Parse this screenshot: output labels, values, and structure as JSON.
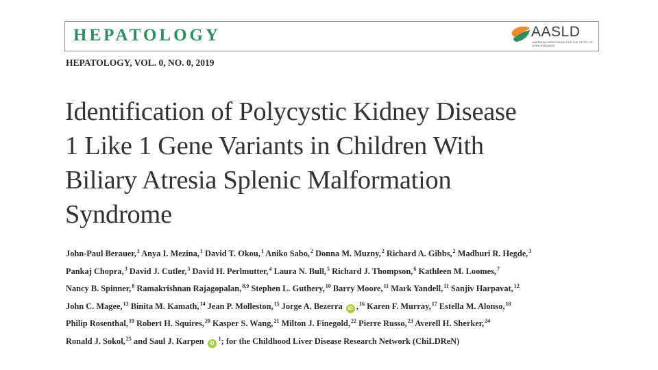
{
  "journal": {
    "name": "HEPATOLOGY",
    "issue": "HEPATOLOGY, VOL. 0, NO. 0, 2019",
    "logo_text": "AASLD",
    "logo_subtitle": "AMERICAN ASSOCIATION FOR THE STUDY OF LIVER DISEASES"
  },
  "title_lines": [
    "Identification of Polycystic Kidney Disease",
    "1 Like 1 Gene Variants in Children With",
    "Biliary Atresia Splenic Malformation",
    "Syndrome"
  ],
  "orcid_label": "iD",
  "authors_lines": [
    [
      {
        "name": "John-Paul Berauer,",
        "sup": "1"
      },
      {
        "name": "Anya I. Mezina,",
        "sup": "1"
      },
      {
        "name": "David T. Okou,",
        "sup": "1"
      },
      {
        "name": "Aniko Sabo,",
        "sup": "2"
      },
      {
        "name": "Donna M. Muzny,",
        "sup": "2"
      },
      {
        "name": "Richard A. Gibbs,",
        "sup": "2"
      },
      {
        "name": "Madhuri R. Hegde,",
        "sup": "3"
      }
    ],
    [
      {
        "name": "Pankaj Chopra,",
        "sup": "3"
      },
      {
        "name": "David J. Cutler,",
        "sup": "3"
      },
      {
        "name": "David H. Perlmutter,",
        "sup": "4"
      },
      {
        "name": "Laura N. Bull,",
        "sup": "5"
      },
      {
        "name": "Richard J. Thompson,",
        "sup": "6"
      },
      {
        "name": "Kathleen M. Loomes,",
        "sup": "7"
      }
    ],
    [
      {
        "name": "Nancy B. Spinner,",
        "sup": "8"
      },
      {
        "name": "Ramakrishnan Rajagopalan,",
        "sup": "8,9"
      },
      {
        "name": "Stephen L. Guthery,",
        "sup": "10"
      },
      {
        "name": "Barry Moore,",
        "sup": "11"
      },
      {
        "name": "Mark Yandell,",
        "sup": "11"
      },
      {
        "name": "Sanjiv Harpavat,",
        "sup": "12"
      }
    ],
    [
      {
        "name": "John C. Magee,",
        "sup": "13"
      },
      {
        "name": "Binita M. Kamath,",
        "sup": "14"
      },
      {
        "name": "Jean P. Molleston,",
        "sup": "15"
      },
      {
        "name": "Jorge A. Bezerra",
        "orcid": true,
        "after": ",",
        "sup": "16"
      },
      {
        "name": "Karen F. Murray,",
        "sup": "17"
      },
      {
        "name": "Estella M. Alonso,",
        "sup": "18"
      }
    ],
    [
      {
        "name": "Philip Rosenthal,",
        "sup": "19"
      },
      {
        "name": "Robert H. Squires,",
        "sup": "20"
      },
      {
        "name": "Kasper S. Wang,",
        "sup": "21"
      },
      {
        "name": "Milton J. Finegold,",
        "sup": "22"
      },
      {
        "name": "Pierre Russo,",
        "sup": "23"
      },
      {
        "name": "Averell H. Sherker,",
        "sup": "24"
      }
    ],
    [
      {
        "name": "Ronald J. Sokol,",
        "sup": "25"
      },
      {
        "name": "and Saul J. Karpen",
        "orcid": true,
        "sup": "1"
      }
    ]
  ],
  "group_author": "; for the Childhood Liver Disease Research Network (ChiLDReN)",
  "colors": {
    "journal_green": "#2f8d5e",
    "logo_green": "#2f8d5e",
    "logo_orange": "#f08a2c",
    "orcid_green": "#a6ce39"
  }
}
